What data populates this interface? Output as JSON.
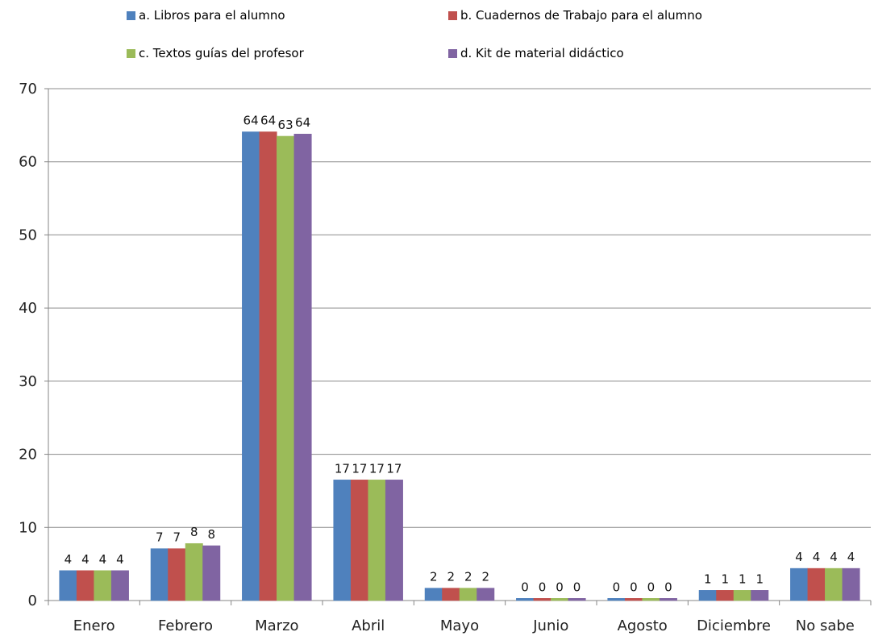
{
  "chart_data": {
    "type": "bar",
    "title": "",
    "xlabel": "",
    "ylabel": "",
    "ylim": [
      0,
      70
    ],
    "yticks": [
      0,
      10,
      20,
      30,
      40,
      50,
      60,
      70
    ],
    "grid": true,
    "legend_position": "top",
    "categories": [
      "Enero",
      "Febrero",
      "Marzo",
      "Abril",
      "Mayo",
      "Junio",
      "Agosto",
      "Diciembre",
      "No sabe"
    ],
    "series": [
      {
        "name": "a. Libros para el alumno",
        "color": "#4F81BD",
        "values": [
          4.1,
          7.1,
          64.1,
          16.5,
          1.7,
          0.3,
          0.3,
          1.4,
          4.4
        ],
        "labels": [
          "4",
          "7",
          "64",
          "17",
          "2",
          "0",
          "0",
          "1",
          "4"
        ]
      },
      {
        "name": "b. Cuadernos de Trabajo para el alumno",
        "color": "#C0504D",
        "values": [
          4.1,
          7.1,
          64.1,
          16.5,
          1.7,
          0.3,
          0.3,
          1.4,
          4.4
        ],
        "labels": [
          "4",
          "7",
          "64",
          "17",
          "2",
          "0",
          "0",
          "1",
          "4"
        ]
      },
      {
        "name": "c. Textos guías del profesor",
        "color": "#9BBB59",
        "values": [
          4.1,
          7.8,
          63.5,
          16.5,
          1.7,
          0.3,
          0.3,
          1.4,
          4.4
        ],
        "labels": [
          "4",
          "8",
          "63",
          "17",
          "2",
          "0",
          "0",
          "1",
          "4"
        ]
      },
      {
        "name": "d. Kit de material didáctico",
        "color": "#8064A2",
        "values": [
          4.1,
          7.5,
          63.8,
          16.5,
          1.7,
          0.3,
          0.3,
          1.4,
          4.4
        ],
        "labels": [
          "4",
          "8",
          "64",
          "17",
          "2",
          "0",
          "0",
          "1",
          "4"
        ]
      }
    ]
  }
}
